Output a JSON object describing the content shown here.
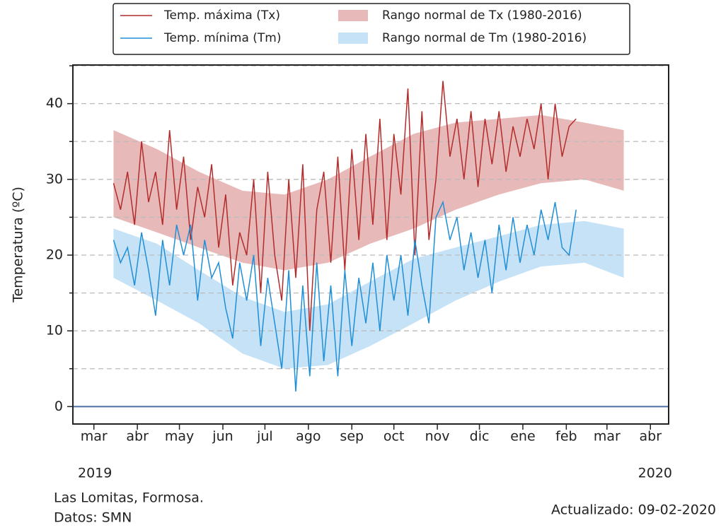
{
  "chart_data": {
    "type": "line",
    "ylabel": "Temperatura (ºC)",
    "xlim": [
      -15,
      410
    ],
    "xticks": [
      {
        "value": 0,
        "label": "mar"
      },
      {
        "value": 31,
        "label": "abr"
      },
      {
        "value": 61,
        "label": "may"
      },
      {
        "value": 92,
        "label": "jun"
      },
      {
        "value": 122,
        "label": "jul"
      },
      {
        "value": 153,
        "label": "ago"
      },
      {
        "value": 184,
        "label": "sep"
      },
      {
        "value": 214,
        "label": "oct"
      },
      {
        "value": 245,
        "label": "nov"
      },
      {
        "value": 275,
        "label": "dic"
      },
      {
        "value": 306,
        "label": "ene"
      },
      {
        "value": 337,
        "label": "feb"
      },
      {
        "value": 366,
        "label": "mar"
      },
      {
        "value": 397,
        "label": "abr"
      }
    ],
    "ylim": [
      -2.3,
      45.1
    ],
    "yticks": [
      0,
      10,
      20,
      30,
      40
    ],
    "yminorticks": [
      5,
      15,
      25,
      35,
      45
    ],
    "grid": true,
    "zero_line_color": "#4a6fa5",
    "year_labels": [
      "2019",
      "2020"
    ],
    "annotations": [
      "Las Lomitas, Formosa.",
      "Datos: SMN",
      "Actualizado: 09-02-2020"
    ],
    "x": [
      14,
      19,
      24,
      29,
      34,
      39,
      44,
      49,
      54,
      59,
      64,
      69,
      74,
      79,
      84,
      89,
      94,
      99,
      104,
      109,
      114,
      119,
      124,
      129,
      134,
      139,
      144,
      149,
      154,
      159,
      164,
      169,
      174,
      179,
      184,
      189,
      194,
      199,
      204,
      209,
      214,
      219,
      224,
      229,
      234,
      239,
      244,
      249,
      254,
      259,
      264,
      269,
      274,
      279,
      284,
      289,
      294,
      299,
      304,
      309,
      314,
      319,
      324,
      329,
      334,
      339,
      344
    ],
    "series": [
      {
        "name": "Temp. máxima (Tx)",
        "color": "#b22c2c",
        "values": [
          29.5,
          26,
          31,
          24,
          35,
          27,
          31,
          24,
          36.5,
          26,
          33,
          22,
          29,
          25,
          32,
          21,
          28,
          16,
          23,
          20,
          30,
          15,
          31,
          20,
          14,
          30,
          17,
          32,
          10,
          26,
          31,
          19,
          33,
          18,
          34,
          22,
          36,
          24,
          38,
          22,
          36,
          28,
          42,
          20,
          39,
          22,
          30,
          43,
          33,
          38,
          30,
          39,
          29,
          38,
          32,
          39,
          31,
          37,
          33,
          38,
          34,
          40,
          30,
          40,
          33,
          37,
          38
        ]
      },
      {
        "name": "Temp. mínima (Tm)",
        "color": "#1f8fd6",
        "values": [
          22,
          19,
          21,
          16,
          23,
          18,
          12,
          22,
          16,
          24,
          20,
          24,
          14,
          22,
          17,
          19,
          13,
          9,
          19,
          14,
          20,
          8,
          17,
          11,
          5,
          18,
          2,
          16,
          4,
          19,
          6,
          16,
          4,
          18,
          8,
          17,
          11,
          19,
          10,
          20,
          14,
          20,
          12,
          22,
          16,
          11,
          25,
          27,
          22,
          25,
          18,
          23,
          17,
          22,
          15,
          24,
          18,
          25,
          19,
          24,
          20,
          26,
          22,
          27,
          21,
          20,
          26
        ]
      }
    ],
    "bands": [
      {
        "name": "Rango normal de Tx (1980-2016)",
        "color": "#e8b9b9",
        "x": [
          14,
          45,
          75,
          106,
          136,
          167,
          197,
          228,
          258,
          289,
          319,
          350,
          378
        ],
        "lower": [
          25,
          23,
          21,
          19,
          18,
          19,
          21.5,
          23.5,
          26,
          28,
          29.5,
          30,
          28.5
        ],
        "upper": [
          36.5,
          34,
          31,
          28.5,
          28,
          30,
          33,
          36,
          37.5,
          38,
          38.5,
          37.5,
          36.5
        ]
      },
      {
        "name": "Rango normal de Tm (1980-2016)",
        "color": "#c6e2f7",
        "x": [
          14,
          45,
          75,
          106,
          136,
          167,
          197,
          228,
          258,
          289,
          319,
          350,
          378
        ],
        "lower": [
          17,
          14,
          11,
          7,
          5,
          5.5,
          8,
          11,
          14,
          16.5,
          18.5,
          19,
          17
        ],
        "upper": [
          23.5,
          21.5,
          18,
          14.5,
          12.5,
          13.5,
          16.5,
          19.5,
          21,
          22.5,
          24,
          24.5,
          23.5
        ]
      }
    ]
  }
}
